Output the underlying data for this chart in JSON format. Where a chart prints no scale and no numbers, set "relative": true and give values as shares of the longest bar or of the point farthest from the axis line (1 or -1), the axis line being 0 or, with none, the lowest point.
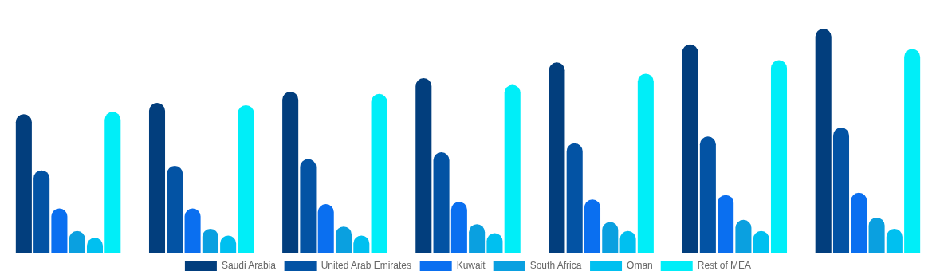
{
  "chart_data": {
    "type": "bar",
    "relative": true,
    "legend": "bottom",
    "categories": [
      null,
      null,
      null,
      null,
      null,
      null,
      null
    ],
    "series": [
      {
        "name": "Saudi Arabia",
        "color": "#023e7d",
        "values": [
          0.62,
          0.67,
          0.72,
          0.78,
          0.85,
          0.93,
          1
        ]
      },
      {
        "name": "United Arab Emirates",
        "color": "#0353a4",
        "values": [
          0.37,
          0.39,
          0.42,
          0.45,
          0.49,
          0.52,
          0.56
        ]
      },
      {
        "name": "Kuwait",
        "color": "#0a6ff0",
        "values": [
          0.2,
          0.2,
          0.22,
          0.23,
          0.24,
          0.26,
          0.27
        ]
      },
      {
        "name": "South Africa",
        "color": "#0aa0e0",
        "values": [
          0.1,
          0.11,
          0.12,
          0.13,
          0.14,
          0.15,
          0.16
        ]
      },
      {
        "name": "Oman",
        "color": "#00c0f0",
        "values": [
          0.07,
          0.08,
          0.08,
          0.09,
          0.1,
          0.1,
          0.11
        ]
      },
      {
        "name": "Rest of MEA",
        "color": "#00eef8",
        "values": [
          0.63,
          0.66,
          0.71,
          0.75,
          0.8,
          0.86,
          0.91
        ]
      }
    ]
  }
}
